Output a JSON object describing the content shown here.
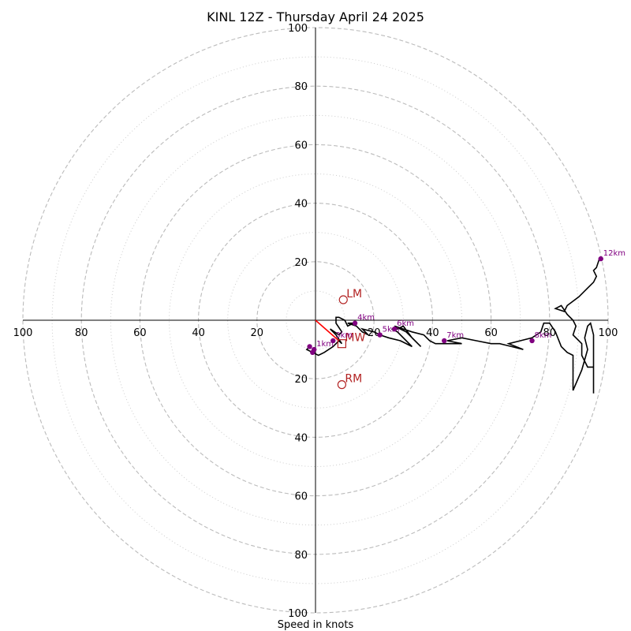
{
  "chart_data": {
    "type": "scatter",
    "title": "KINL 12Z - Thursday April 24 2025",
    "xlabel": "Speed in knots",
    "ylabel": "",
    "xlim": [
      -100,
      100
    ],
    "ylim": [
      -100,
      100
    ],
    "grid": true,
    "ring_labels": [
      "20",
      "40",
      "60",
      "80",
      "100"
    ],
    "ring_values": [
      20,
      40,
      60,
      80,
      100
    ],
    "minor_rings": [
      10,
      30,
      50,
      70,
      90
    ],
    "hodograph_trace": [
      [
        -2,
        -9
      ],
      [
        -3,
        -10
      ],
      [
        -1,
        -11
      ],
      [
        1,
        -12
      ],
      [
        3,
        -11
      ],
      [
        6,
        -9
      ],
      [
        8,
        -7
      ],
      [
        9,
        -8
      ],
      [
        7,
        -5
      ],
      [
        5,
        -3
      ],
      [
        8,
        -5
      ],
      [
        9,
        -4
      ],
      [
        7,
        -1
      ],
      [
        7,
        1
      ],
      [
        8,
        1
      ],
      [
        10,
        0
      ],
      [
        11,
        -2
      ],
      [
        13,
        -1
      ],
      [
        11,
        -1
      ],
      [
        14,
        -2
      ],
      [
        16,
        -4
      ],
      [
        18,
        -5
      ],
      [
        16,
        -3
      ],
      [
        20,
        -4
      ],
      [
        22,
        -5
      ],
      [
        25,
        -6
      ],
      [
        29,
        -7
      ],
      [
        33,
        -9
      ],
      [
        31,
        -7
      ],
      [
        28,
        -4
      ],
      [
        26,
        -3
      ],
      [
        28,
        -3
      ],
      [
        30,
        -2
      ],
      [
        33,
        -6
      ],
      [
        36,
        -9
      ],
      [
        31,
        -4
      ],
      [
        29,
        -3
      ],
      [
        27,
        -2
      ],
      [
        30,
        -3
      ],
      [
        33,
        -4
      ],
      [
        37,
        -5
      ],
      [
        39,
        -7
      ],
      [
        41,
        -8
      ],
      [
        44,
        -8
      ],
      [
        48,
        -8
      ],
      [
        50,
        -8
      ],
      [
        45,
        -7
      ],
      [
        50,
        -6
      ],
      [
        55,
        -7
      ],
      [
        60,
        -8
      ],
      [
        63,
        -8
      ],
      [
        67,
        -9
      ],
      [
        71,
        -10
      ],
      [
        66,
        -8
      ],
      [
        70,
        -7
      ],
      [
        74,
        -6
      ],
      [
        77,
        -4
      ],
      [
        78,
        -1
      ],
      [
        80,
        -1
      ],
      [
        82,
        -4
      ],
      [
        84,
        -9
      ],
      [
        86,
        -11
      ],
      [
        88,
        -12
      ],
      [
        88,
        -24
      ],
      [
        91,
        -17
      ],
      [
        93,
        -10
      ],
      [
        92,
        -6
      ],
      [
        93,
        -2
      ],
      [
        94,
        -1
      ],
      [
        95,
        -5
      ],
      [
        95,
        -12
      ],
      [
        95,
        -17
      ],
      [
        95,
        -25
      ],
      [
        95,
        -16
      ],
      [
        93,
        -16
      ],
      [
        91,
        -12
      ],
      [
        91,
        -8
      ],
      [
        88,
        -5
      ],
      [
        89,
        -2
      ],
      [
        88,
        0
      ],
      [
        86,
        2
      ],
      [
        84,
        5
      ],
      [
        82,
        4
      ],
      [
        85,
        3
      ],
      [
        86,
        5
      ],
      [
        90,
        8
      ],
      [
        93,
        11
      ],
      [
        95,
        13
      ],
      [
        96,
        15
      ],
      [
        95,
        17
      ],
      [
        96,
        18
      ],
      [
        97,
        21
      ]
    ],
    "height_markers": [
      {
        "label": "1km",
        "u": -0.5,
        "v": -10
      },
      {
        "label": "",
        "u": -1,
        "v": -11
      },
      {
        "label": "",
        "u": -2,
        "v": -9
      },
      {
        "label": "3km",
        "u": 6,
        "v": -7
      },
      {
        "label": "4km",
        "u": 13.5,
        "v": -1
      },
      {
        "label": "5km",
        "u": 22,
        "v": -5
      },
      {
        "label": "6km",
        "u": 27,
        "v": -3
      },
      {
        "label": "7km",
        "u": 44,
        "v": -7
      },
      {
        "label": "8km",
        "u": 74,
        "v": -7
      },
      {
        "label": "12km",
        "u": 97.5,
        "v": 21
      }
    ],
    "storm_motion": {
      "points": [
        {
          "label": "LM",
          "u": 9.5,
          "v": 7
        },
        {
          "label": "RM",
          "u": 9,
          "v": -22
        },
        {
          "label": "MW",
          "u": 9,
          "v": -8
        }
      ],
      "shear_vector": [
        [
          0,
          0
        ],
        [
          8,
          -7
        ]
      ]
    },
    "colors": {
      "trace": "#000000",
      "markers": "#800080",
      "storm_motion": "#b22222",
      "shear_vector": "#ff0000",
      "grid": "#bbbbbb"
    }
  }
}
